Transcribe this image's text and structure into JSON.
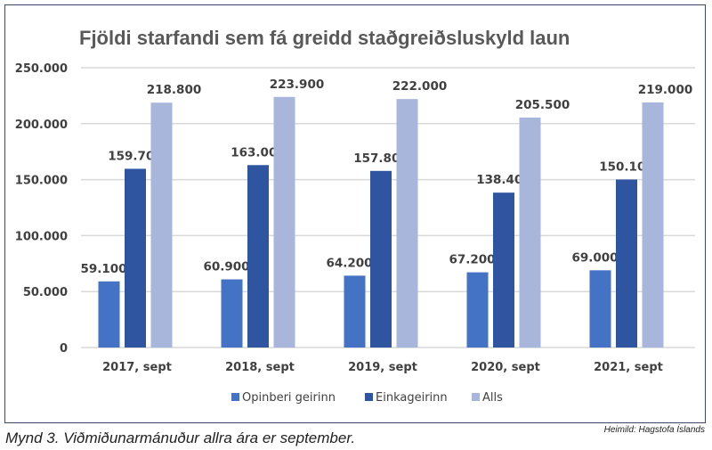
{
  "chart_data": {
    "type": "bar",
    "title": "Fjöldi starfandi sem fá greidd staðgreiðsluskyld laun",
    "categories": [
      "2017, sept",
      "2018, sept",
      "2019, sept",
      "2020, sept",
      "2021, sept"
    ],
    "series": [
      {
        "name": "Opinberi geirinn",
        "color": "#4472c4",
        "values": [
          59100,
          60900,
          64200,
          67200,
          69000
        ],
        "labels": [
          "59.100",
          "60.900",
          "64.200",
          "67.200",
          "69.000"
        ]
      },
      {
        "name": "Einkageirinn",
        "color": "#2f55a0",
        "values": [
          159700,
          163000,
          157800,
          138400,
          150100
        ],
        "labels": [
          "159.700",
          "163.000",
          "157.800",
          "138.400",
          "150.100"
        ]
      },
      {
        "name": "Alls",
        "color": "#a9b6dc",
        "values": [
          218800,
          223900,
          222000,
          205500,
          219000
        ],
        "labels": [
          "218.800",
          "223.900",
          "222.000",
          "205.500",
          "219.000"
        ]
      }
    ],
    "ylim": [
      0,
      250000
    ],
    "yticks": [
      0,
      50000,
      100000,
      150000,
      200000,
      250000
    ],
    "ytick_labels": [
      "0",
      "50.000",
      "100.000",
      "150.000",
      "200.000",
      "250.000"
    ],
    "grid": true,
    "legend": "bottom",
    "xlabel": "",
    "ylabel": ""
  },
  "caption": "Mynd 3. Viðmiðunarmánuður allra ára er september.",
  "source": "Heimild: Hagstofa Íslands"
}
